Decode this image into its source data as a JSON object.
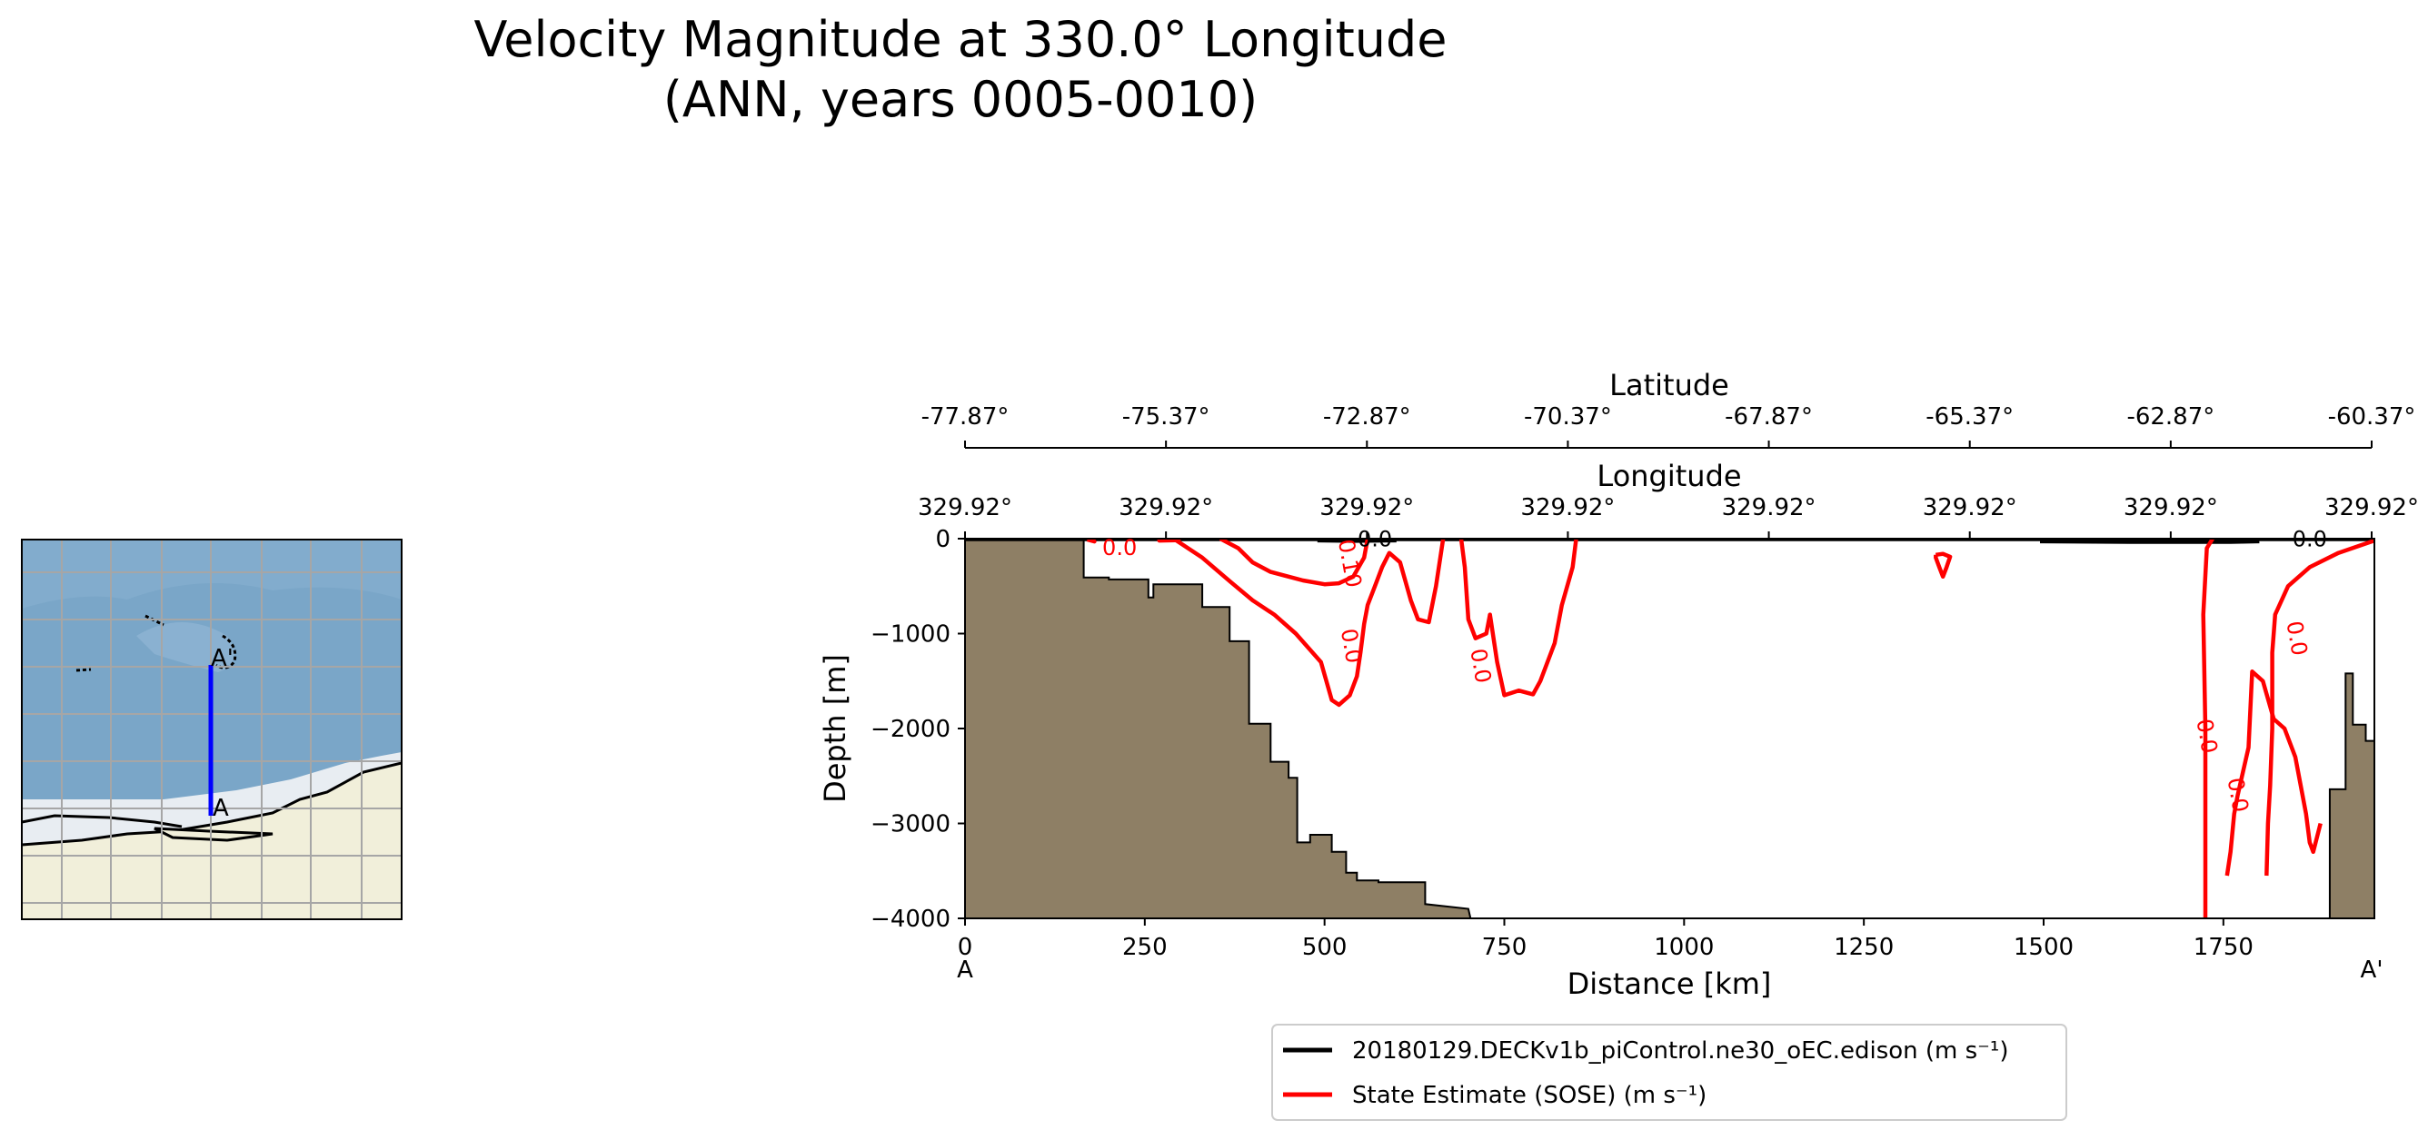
{
  "chart_data": [
    {
      "type": "line",
      "title_line1": "Velocity Magnitude at 330.0° Longitude",
      "title_line2": "(ANN, years 0005-0010)",
      "xlabel": "Distance [km]",
      "ylabel": "Depth [m]",
      "xlim": [
        0,
        1960
      ],
      "ylim": [
        -4000,
        0
      ],
      "x_ticks": [
        0,
        250,
        500,
        750,
        1000,
        1250,
        1500,
        1750
      ],
      "x_tick_labels": [
        "0",
        "250",
        "500",
        "750",
        "1000",
        "1250",
        "1500",
        "1750"
      ],
      "y_ticks": [
        0,
        -1000,
        -2000,
        -3000,
        -4000
      ],
      "y_tick_labels": [
        "0",
        "−1000",
        "−2000",
        "−3000",
        "−4000"
      ],
      "endpoint_left": "A",
      "endpoint_right": "A'",
      "latitude_axis": {
        "label": "Latitude",
        "tick_labels": [
          "-77.87°",
          "-75.37°",
          "-72.87°",
          "-70.37°",
          "-67.87°",
          "-65.37°",
          "-62.87°",
          "-60.37°"
        ]
      },
      "longitude_axis": {
        "label": "Longitude",
        "tick_labels": [
          "329.92°",
          "329.92°",
          "329.92°",
          "329.92°",
          "329.92°",
          "329.92°",
          "329.92°",
          "329.92°"
        ]
      },
      "bathymetry": {
        "color": "#8e7f65",
        "left_profile": [
          [
            0,
            -4000
          ],
          [
            0,
            0
          ],
          [
            165,
            0
          ],
          [
            165,
            -410
          ],
          [
            200,
            -410
          ],
          [
            200,
            -430
          ],
          [
            255,
            -430
          ],
          [
            255,
            -620
          ],
          [
            262,
            -620
          ],
          [
            262,
            -480
          ],
          [
            330,
            -480
          ],
          [
            330,
            -720
          ],
          [
            368,
            -720
          ],
          [
            368,
            -1080
          ],
          [
            395,
            -1080
          ],
          [
            395,
            -1950
          ],
          [
            425,
            -1950
          ],
          [
            425,
            -2350
          ],
          [
            450,
            -2350
          ],
          [
            450,
            -2520
          ],
          [
            462,
            -2520
          ],
          [
            462,
            -3200
          ],
          [
            480,
            -3200
          ],
          [
            480,
            -3120
          ],
          [
            510,
            -3120
          ],
          [
            510,
            -3300
          ],
          [
            530,
            -3300
          ],
          [
            530,
            -3520
          ],
          [
            545,
            -3520
          ],
          [
            545,
            -3600
          ],
          [
            575,
            -3600
          ],
          [
            575,
            -3620
          ],
          [
            640,
            -3620
          ],
          [
            640,
            -3850
          ],
          [
            700,
            -3900
          ],
          [
            703,
            -4000
          ]
        ],
        "right_profile": [
          [
            1898,
            -4000
          ],
          [
            1898,
            -2640
          ],
          [
            1920,
            -2640
          ],
          [
            1920,
            -1420
          ],
          [
            1930,
            -1420
          ],
          [
            1930,
            -1960
          ],
          [
            1948,
            -1960
          ],
          [
            1948,
            -2130
          ],
          [
            1960,
            -2130
          ],
          [
            1960,
            -4000
          ]
        ]
      },
      "series": [
        {
          "name": "20180129.DECKv1b_piControl.ne30_oEC.edison (m s⁻¹)",
          "color": "#000000",
          "contours": [
            [
              [
                0,
                -8
              ],
              [
                1960,
                -8
              ]
            ],
            [
              [
                1495,
                -30
              ],
              [
                1620,
                -35
              ],
              [
                1760,
                -35
              ],
              [
                1800,
                -30
              ]
            ],
            [
              [
                490,
                -20
              ],
              [
                540,
                -25
              ],
              [
                600,
                -20
              ]
            ]
          ],
          "labels": [
            {
              "text": "0.0",
              "x": 570,
              "y": -5
            },
            {
              "text": "0.0",
              "x": 1870,
              "y": -5
            }
          ]
        },
        {
          "name": "State Estimate (SOSE) (m s⁻¹)",
          "color": "#ff0000",
          "contours": [
            [
              [
                175,
                0
              ],
              [
                180,
                -30
              ],
              [
                170,
                -10
              ]
            ],
            [
              [
                275,
                0
              ],
              [
                270,
                -20
              ],
              [
                300,
                -15
              ]
            ],
            [
              [
                355,
                0
              ],
              [
                380,
                -100
              ],
              [
                400,
                -250
              ],
              [
                425,
                -350
              ],
              [
                470,
                -440
              ],
              [
                500,
                -480
              ],
              [
                520,
                -470
              ],
              [
                540,
                -400
              ],
              [
                555,
                -200
              ],
              [
                560,
                0
              ]
            ],
            [
              [
                290,
                0
              ],
              [
                330,
                -200
              ],
              [
                370,
                -460
              ],
              [
                400,
                -650
              ],
              [
                430,
                -800
              ],
              [
                460,
                -1000
              ],
              [
                495,
                -1300
              ],
              [
                510,
                -1700
              ],
              [
                520,
                -1750
              ],
              [
                535,
                -1650
              ],
              [
                545,
                -1450
              ],
              [
                550,
                -1200
              ],
              [
                555,
                -900
              ],
              [
                560,
                -700
              ],
              [
                570,
                -500
              ],
              [
                580,
                -300
              ],
              [
                590,
                -150
              ],
              [
                605,
                -250
              ],
              [
                620,
                -650
              ],
              [
                630,
                -850
              ],
              [
                645,
                -880
              ],
              [
                655,
                -500
              ],
              [
                665,
                0
              ]
            ],
            [
              [
                690,
                0
              ],
              [
                695,
                -300
              ],
              [
                700,
                -850
              ],
              [
                710,
                -1050
              ],
              [
                725,
                -1000
              ],
              [
                730,
                -800
              ],
              [
                740,
                -1300
              ],
              [
                750,
                -1650
              ],
              [
                770,
                -1600
              ],
              [
                790,
                -1640
              ],
              [
                800,
                -1500
              ],
              [
                820,
                -1100
              ],
              [
                830,
                -700
              ],
              [
                845,
                -300
              ],
              [
                850,
                0
              ]
            ],
            [
              [
                1350,
                -170
              ],
              [
                1360,
                -160
              ],
              [
                1370,
                -190
              ],
              [
                1365,
                -300
              ],
              [
                1360,
                -400
              ],
              [
                1355,
                -300
              ],
              [
                1350,
                -200
              ],
              [
                1350,
                -170
              ]
            ],
            [
              [
                1725,
                -4000
              ],
              [
                1725,
                -3200
              ],
              [
                1725,
                -2000
              ],
              [
                1722,
                -800
              ],
              [
                1727,
                -100
              ],
              [
                1735,
                0
              ]
            ],
            [
              [
                1755,
                -3550
              ],
              [
                1760,
                -3300
              ],
              [
                1765,
                -2900
              ],
              [
                1770,
                -2700
              ],
              [
                1785,
                -2200
              ],
              [
                1790,
                -1400
              ],
              [
                1805,
                -1500
              ],
              [
                1820,
                -1900
              ],
              [
                1835,
                -2000
              ],
              [
                1850,
                -2300
              ],
              [
                1865,
                -2900
              ],
              [
                1870,
                -3200
              ],
              [
                1875,
                -3300
              ],
              [
                1885,
                -3000
              ]
            ],
            [
              [
                1810,
                -3550
              ],
              [
                1812,
                -3000
              ],
              [
                1815,
                -2600
              ],
              [
                1818,
                -2000
              ],
              [
                1818,
                -1200
              ],
              [
                1822,
                -800
              ],
              [
                1840,
                -500
              ],
              [
                1870,
                -300
              ],
              [
                1910,
                -150
              ],
              [
                1960,
                -20
              ]
            ]
          ],
          "labels": [
            {
              "text": "0.0",
              "x": 215,
              "y": -95
            },
            {
              "text": "0.10",
              "x": 535,
              "y": -260
            },
            {
              "text": "0.0",
              "x": 537,
              "y": -1130
            },
            {
              "text": "0.0",
              "x": 717,
              "y": -1340
            },
            {
              "text": "0.0",
              "x": 1727,
              "y": -2080
            },
            {
              "text": "0.0",
              "x": 1770,
              "y": -2700
            },
            {
              "text": "0.0",
              "x": 1852,
              "y": -1050
            }
          ]
        }
      ]
    },
    {
      "type": "map",
      "endpoint_start": "A",
      "endpoint_end": "A'",
      "ocean_color": "#7aa6c8",
      "land_color": "#f1efda",
      "ice_color": "#e8edf2",
      "transect_color": "#0000ff"
    }
  ]
}
